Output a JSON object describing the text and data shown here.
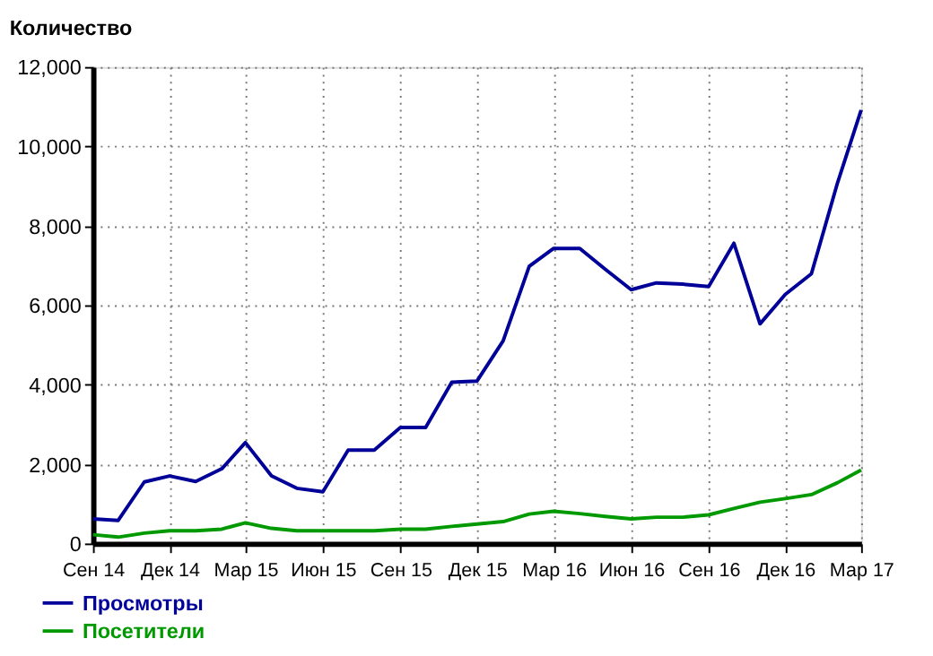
{
  "chart_data": {
    "type": "line",
    "ylabel": "Количество",
    "x": [
      "2014-09",
      "2014-10",
      "2014-11",
      "2014-12",
      "2015-01",
      "2015-02",
      "2015-03",
      "2015-04",
      "2015-05",
      "2015-06",
      "2015-07",
      "2015-08",
      "2015-09",
      "2015-10",
      "2015-11",
      "2015-12",
      "2016-01",
      "2016-02",
      "2016-03",
      "2016-04",
      "2016-05",
      "2016-06",
      "2016-07",
      "2016-08",
      "2016-09",
      "2016-10",
      "2016-11",
      "2016-12",
      "2017-01",
      "2017-02",
      "2017-03"
    ],
    "series": [
      {
        "name": "Просмотры",
        "color": "#000099",
        "values": [
          620,
          580,
          1550,
          1700,
          1560,
          1880,
          2540,
          1700,
          1390,
          1300,
          2350,
          2350,
          2920,
          2920,
          4060,
          4090,
          5100,
          6980,
          7430,
          7430,
          6910,
          6390,
          6560,
          6530,
          6470,
          7560,
          5530,
          6270,
          6790,
          9080,
          10910
        ]
      },
      {
        "name": "Посетители",
        "color": "#009900",
        "values": [
          220,
          160,
          260,
          320,
          320,
          360,
          520,
          380,
          320,
          320,
          320,
          320,
          360,
          360,
          430,
          490,
          550,
          740,
          810,
          750,
          680,
          620,
          660,
          660,
          720,
          880,
          1040,
          1130,
          1230,
          1530,
          1850
        ]
      }
    ],
    "xlim": [
      "2014-09",
      "2017-03"
    ],
    "xticks": [
      {
        "value": "2014-09",
        "label": "Сен 14"
      },
      {
        "value": "2014-12",
        "label": "Дек 14"
      },
      {
        "value": "2015-03",
        "label": "Мар 15"
      },
      {
        "value": "2015-06",
        "label": "Июн 15"
      },
      {
        "value": "2015-09",
        "label": "Сен 15"
      },
      {
        "value": "2015-12",
        "label": "Дек 15"
      },
      {
        "value": "2016-03",
        "label": "Мар 16"
      },
      {
        "value": "2016-06",
        "label": "Июн 16"
      },
      {
        "value": "2016-09",
        "label": "Сен 16"
      },
      {
        "value": "2016-12",
        "label": "Дек 16"
      },
      {
        "value": "2017-03",
        "label": "Мар 17"
      }
    ],
    "ylim": [
      0,
      12000
    ],
    "yticks": [
      {
        "value": 0,
        "label": "0"
      },
      {
        "value": 2000,
        "label": "2,000"
      },
      {
        "value": 4000,
        "label": "4,000"
      },
      {
        "value": 6000,
        "label": "6,000"
      },
      {
        "value": 8000,
        "label": "8,000"
      },
      {
        "value": 10000,
        "label": "10,000"
      },
      {
        "value": 12000,
        "label": "12,000"
      }
    ],
    "grid": true,
    "legend": "bottom left",
    "marker": "none",
    "line_style": "solid"
  }
}
